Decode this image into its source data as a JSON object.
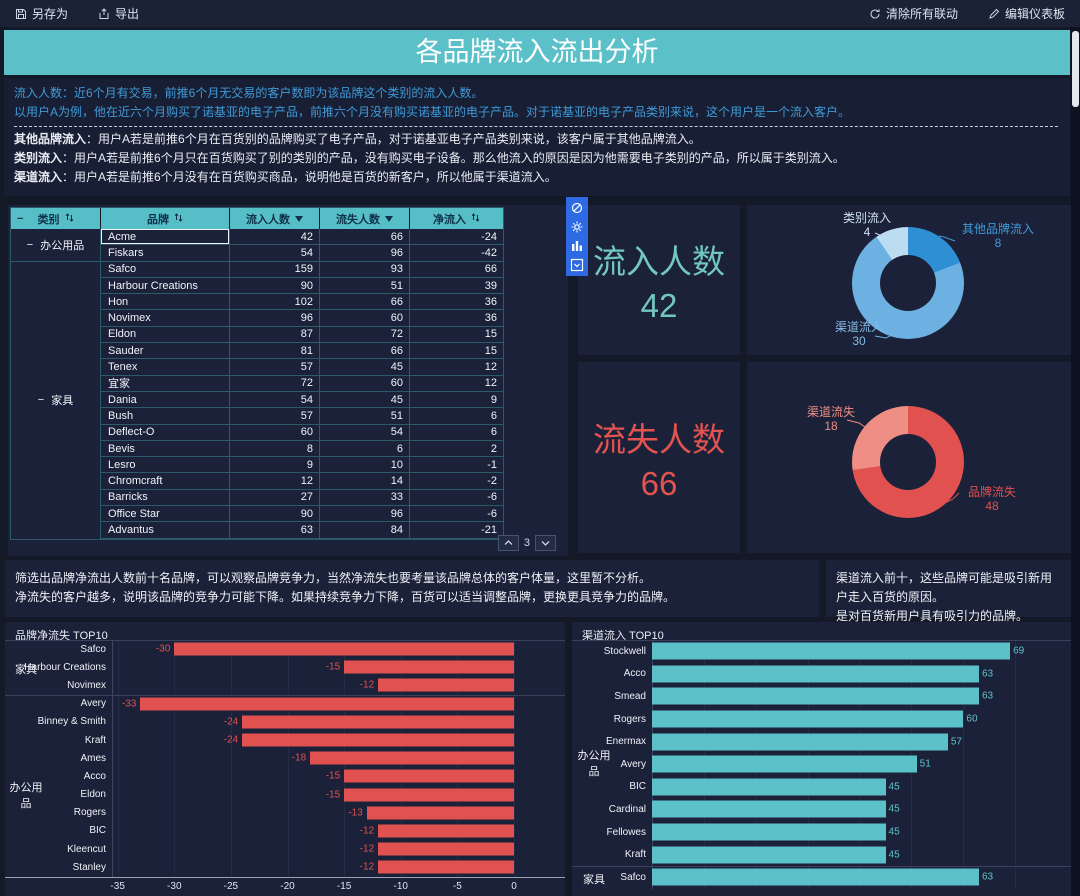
{
  "toolbar": {
    "save_as": "另存为",
    "export": "导出",
    "clear_linkage": "清除所有联动",
    "edit_dashboard": "编辑仪表板"
  },
  "title": "各品牌流入流出分析",
  "description": {
    "line1": "流入人数：近6个月有交易，前推6个月无交易的客户数即为该品牌这个类别的流入人数。",
    "line2": "以用户A为例，他在近六个月购买了诺基亚的电子产品，前推六个月没有购买诺基亚的电子产品。对于诺基亚的电子产品类别来说，这个用户是一个流入客户。",
    "items": [
      {
        "label": "其他品牌流入",
        "text": "：用户A若是前推6个月在百货别的品牌购买了电子产品，对于诺基亚电子产品类别来说，该客户属于其他品牌流入。"
      },
      {
        "label": "类别流入",
        "text": "：用户A若是前推6个月只在百货购买了别的类别的产品，没有购买电子设备。那么他流入的原因是因为他需要电子类别的产品，所以属于类别流入。"
      },
      {
        "label": "渠道流入",
        "text": "：用户A若是前推6个月没有在百货购买商品，说明他是百货的新客户，所以他属于渠道流入。"
      }
    ]
  },
  "table": {
    "columns": [
      {
        "label": "类别",
        "icon": "sort",
        "collapse": true
      },
      {
        "label": "品牌",
        "icon": "sort"
      },
      {
        "label": "流入人数",
        "icon": "filter"
      },
      {
        "label": "流失人数",
        "icon": "filter"
      },
      {
        "label": "净流入",
        "icon": "sort"
      }
    ],
    "selected": "Acme",
    "groups": [
      {
        "category": "办公用品",
        "rows": [
          [
            "Acme",
            42,
            66,
            -24
          ],
          [
            "Fiskars",
            54,
            96,
            -42
          ]
        ]
      },
      {
        "category": "家具",
        "rows": [
          [
            "Safco",
            159,
            93,
            66
          ],
          [
            "Harbour Creations",
            90,
            51,
            39
          ],
          [
            "Hon",
            102,
            66,
            36
          ],
          [
            "Novimex",
            96,
            60,
            36
          ],
          [
            "Eldon",
            87,
            72,
            15
          ],
          [
            "Sauder",
            81,
            66,
            15
          ],
          [
            "Tenex",
            57,
            45,
            12
          ],
          [
            "宜家",
            72,
            60,
            12
          ],
          [
            "Dania",
            54,
            45,
            9
          ],
          [
            "Bush",
            57,
            51,
            6
          ],
          [
            "Deflect-O",
            60,
            54,
            6
          ],
          [
            "Bevis",
            8,
            6,
            2
          ],
          [
            "Lesro",
            9,
            10,
            -1
          ],
          [
            "Chromcraft",
            12,
            14,
            -2
          ],
          [
            "Barricks",
            27,
            33,
            -6
          ],
          [
            "Office Star",
            90,
            96,
            -6
          ],
          [
            "Advantus",
            63,
            84,
            -21
          ]
        ]
      }
    ],
    "pager": "3"
  },
  "kpi": {
    "inflow": {
      "label": "流入人数",
      "value": 42
    },
    "outflow": {
      "label": "流失人数",
      "value": 66
    }
  },
  "chart_data": [
    {
      "type": "pie",
      "name": "inflow-donut",
      "total": 42,
      "slices": [
        {
          "label": "其他品牌流入",
          "value": 8,
          "color": "#2e8fd4"
        },
        {
          "label": "渠道流入",
          "value": 30,
          "color": "#6cb1e2"
        },
        {
          "label": "类别流入",
          "value": 4,
          "color": "#bcdcf2"
        }
      ]
    },
    {
      "type": "pie",
      "name": "outflow-donut",
      "total": 66,
      "slices": [
        {
          "label": "品牌流失",
          "value": 48,
          "color": "#e0514f"
        },
        {
          "label": "渠道流失",
          "value": 18,
          "color": "#ef8e85"
        }
      ]
    },
    {
      "type": "bar",
      "title": "品牌净流失 TOP10",
      "orientation": "horizontal",
      "color": "#e0514f",
      "xticks": [
        -35,
        -30,
        -25,
        -20,
        -15,
        -10,
        -5,
        0
      ],
      "xlim": [
        -35.5,
        0
      ],
      "groups": [
        {
          "name": "家具",
          "items": [
            [
              "Safco",
              -30
            ],
            [
              "Harbour Creations",
              -15
            ],
            [
              "Novimex",
              -12
            ]
          ]
        },
        {
          "name": "办公用品",
          "items": [
            [
              "Avery",
              -33
            ],
            [
              "Binney & Smith",
              -24
            ],
            [
              "Kraft",
              -24
            ],
            [
              "Ames",
              -18
            ],
            [
              "Acco",
              -15
            ],
            [
              "Eldon",
              -15
            ],
            [
              "Rogers",
              -13
            ],
            [
              "BIC",
              -12
            ],
            [
              "Kleencut",
              -12
            ],
            [
              "Stanley",
              -12
            ]
          ]
        }
      ]
    },
    {
      "type": "bar",
      "title": "渠道流入 TOP10",
      "orientation": "horizontal",
      "color": "#5bc0c8",
      "xlim": [
        0,
        79
      ],
      "groups": [
        {
          "name": "办公用品",
          "items": [
            [
              "Stockwell",
              69
            ],
            [
              "Acco",
              63
            ],
            [
              "Smead",
              63
            ],
            [
              "Rogers",
              60
            ],
            [
              "Enermax",
              57
            ],
            [
              "Avery",
              51
            ],
            [
              "BIC",
              45
            ],
            [
              "Cardinal",
              45
            ],
            [
              "Fellowes",
              45
            ],
            [
              "Kraft",
              45
            ]
          ]
        },
        {
          "name": "家具",
          "items": [
            [
              "Safco",
              63
            ]
          ]
        }
      ]
    }
  ],
  "notes": {
    "left1": "筛选出品牌净流出人数前十名品牌，可以观察品牌竞争力，当然净流失也要考量该品牌总体的客户体量，这里暂不分析。",
    "left2": "净流失的客户越多，说明该品牌的竞争力可能下降。如果持续竞争力下降，百货可以适当调整品牌，更换更具竞争力的品牌。",
    "right1": "渠道流入前十，这些品牌可能是吸引新用户走入百货的原因。",
    "right2": "是对百货新用户具有吸引力的品牌。"
  },
  "side_toolbar": {
    "icons": [
      "clear-icon",
      "settings-icon",
      "table-icon",
      "collapse-icon"
    ]
  },
  "colors": {
    "accent_teal": "#5bc0c8",
    "kpi_teal": "#72c7c3",
    "red": "#e0514f",
    "blue_text": "#3f9bd8"
  }
}
